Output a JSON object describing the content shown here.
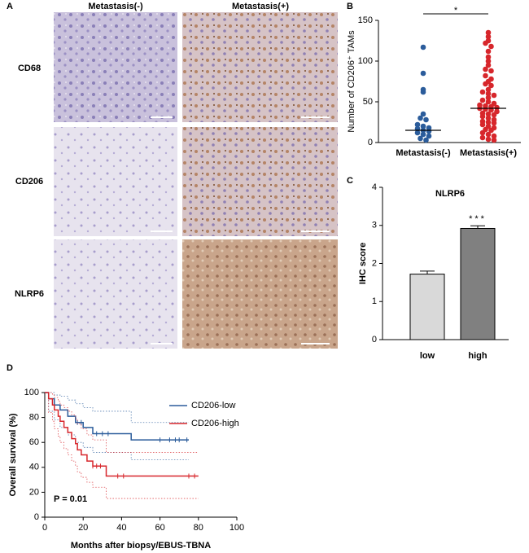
{
  "panel_labels": [
    "A",
    "B",
    "C",
    "D"
  ],
  "panel_a": {
    "column_headers": [
      "Metastasis(-)",
      "Metastasis(+)"
    ],
    "row_labels": [
      "CD68",
      "CD206",
      "NLRP6"
    ]
  },
  "chart_data": [
    {
      "type": "dotplot",
      "ylabel": "Number of CD206⁺ TAMs",
      "annotation": "*",
      "categories": [
        "Metastasis(-)",
        "Metastasis(+)"
      ],
      "groups": [
        {
          "color": "#2b5c9b",
          "values": [
            117,
            85,
            65,
            62,
            35,
            30,
            28,
            22,
            20,
            18,
            17,
            15,
            14,
            12,
            10,
            8,
            5,
            3
          ]
        },
        {
          "color": "#d7262b",
          "values": [
            135,
            130,
            125,
            122,
            118,
            112,
            105,
            100,
            95,
            90,
            88,
            82,
            78,
            75,
            72,
            70,
            65,
            62,
            60,
            58,
            55,
            52,
            50,
            48,
            46,
            45,
            44,
            43,
            42,
            41,
            40,
            38,
            36,
            35,
            34,
            32,
            30,
            28,
            26,
            25,
            24,
            22,
            20,
            18,
            16,
            15,
            12,
            10,
            8,
            6,
            4,
            3
          ]
        }
      ],
      "medians": [
        15,
        42
      ],
      "ylim": [
        0,
        150
      ],
      "yticks": [
        0,
        50,
        100,
        150
      ]
    },
    {
      "type": "bar",
      "title": "NLRP6",
      "ylabel": "IHC score",
      "annotation": "***",
      "categories": [
        "low",
        "high"
      ],
      "values": [
        1.72,
        2.92
      ],
      "errors": [
        0.08,
        0.07
      ],
      "colors": [
        "#d9d9d9",
        "#808080"
      ],
      "ylim": [
        0,
        4
      ],
      "yticks": [
        0,
        1,
        2,
        3,
        4
      ]
    },
    {
      "type": "survival",
      "xlabel": "Months after biopsy/EBUS-TBNA",
      "ylabel": "Overall survival (%)",
      "annotation": "P = 0.01",
      "xlim": [
        0,
        100
      ],
      "xticks": [
        0,
        20,
        40,
        60,
        80,
        100
      ],
      "ylim": [
        0,
        100
      ],
      "yticks": [
        0,
        20,
        40,
        60,
        80,
        100
      ],
      "series": [
        {
          "name": "CD206-low",
          "color": "#2b5c9b",
          "x": [
            0,
            2,
            5,
            8,
            12,
            16,
            20,
            25,
            45,
            75
          ],
          "values": [
            100,
            95,
            90,
            86,
            81,
            76,
            72,
            67,
            62,
            62
          ],
          "lower": [
            100,
            85,
            78,
            72,
            66,
            60,
            56,
            52,
            46,
            46
          ],
          "upper": [
            100,
            100,
            98,
            97,
            94,
            91,
            88,
            85,
            76,
            76
          ],
          "censored": [
            17,
            19,
            27,
            30,
            33,
            60,
            65,
            68,
            70,
            74
          ]
        },
        {
          "name": "CD206-high",
          "color": "#d7262b",
          "x": [
            0,
            2,
            4,
            5,
            7,
            8,
            10,
            12,
            14,
            16,
            17,
            19,
            22,
            25,
            32,
            80
          ],
          "values": [
            100,
            95,
            90,
            86,
            81,
            77,
            72,
            68,
            63,
            59,
            54,
            50,
            45,
            41,
            33,
            33
          ],
          "lower": [
            100,
            84,
            77,
            71,
            65,
            60,
            55,
            50,
            45,
            41,
            36,
            32,
            28,
            24,
            15,
            15
          ],
          "upper": [
            100,
            100,
            98,
            96,
            93,
            90,
            88,
            85,
            82,
            79,
            75,
            71,
            66,
            62,
            52,
            52
          ],
          "censored": [
            25,
            27,
            29,
            38,
            41,
            75,
            78
          ]
        }
      ]
    }
  ]
}
